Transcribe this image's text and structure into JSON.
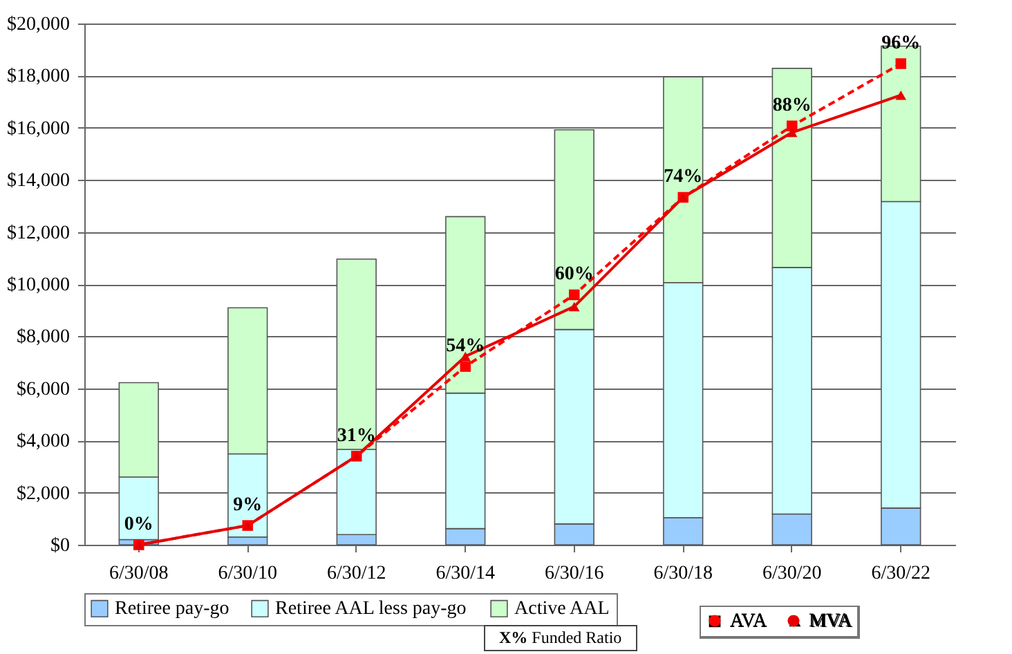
{
  "chart_data": {
    "type": "bar",
    "stacked": true,
    "categories": [
      "6/30/08",
      "6/30/10",
      "6/30/12",
      "6/30/14",
      "6/30/16",
      "6/30/18",
      "6/30/20",
      "6/30/22"
    ],
    "series": [
      {
        "name": "Retiree pay-go",
        "color": "#99ccff",
        "values": [
          200,
          300,
          390,
          620,
          800,
          1040,
          1180,
          1410
        ]
      },
      {
        "name": "Retiree AAL less pay-go",
        "color": "#ccffff",
        "values": [
          2400,
          3190,
          3270,
          5200,
          7460,
          9020,
          9460,
          11760
        ]
      },
      {
        "name": "Active AAL",
        "color": "#ccffcc",
        "values": [
          3620,
          5600,
          7300,
          6770,
          7660,
          7890,
          7640,
          5960
        ]
      },
      {
        "name": "AVA",
        "type": "line",
        "color": "#ff0000",
        "marker": "square",
        "line_style": "dashed",
        "values": [
          0,
          740,
          3400,
          6840,
          9590,
          13330,
          16070,
          18460
        ]
      },
      {
        "name": "MVA",
        "type": "line",
        "color": "#e60000",
        "marker": "triangle",
        "line_style": "solid",
        "values": [
          0,
          740,
          3400,
          7230,
          9140,
          13330,
          15820,
          17250
        ]
      }
    ],
    "ylim": [
      0,
      20000
    ],
    "yticks": [
      {
        "value": 0,
        "label": "$0"
      },
      {
        "value": 2000,
        "label": "$2,000"
      },
      {
        "value": 4000,
        "label": "$4,000"
      },
      {
        "value": 6000,
        "label": "$6,000"
      },
      {
        "value": 8000,
        "label": "$8,000"
      },
      {
        "value": 10000,
        "label": "$10,000"
      },
      {
        "value": 12000,
        "label": "$12,000"
      },
      {
        "value": 14000,
        "label": "$14,000"
      },
      {
        "value": 16000,
        "label": "$16,000"
      },
      {
        "value": 18000,
        "label": "$18,000"
      },
      {
        "value": 20000,
        "label": "$20,000"
      }
    ],
    "grid": "y",
    "legend": "bottom",
    "annotations": [
      {
        "text": "0%",
        "x": "6/30/08",
        "y": 0
      },
      {
        "text": "9%",
        "x": "6/30/10",
        "y": 740
      },
      {
        "text": "31%",
        "x": "6/30/12",
        "y": 3400
      },
      {
        "text": "54%",
        "x": "6/30/14",
        "y": 6840
      },
      {
        "text": "60%",
        "x": "6/30/16",
        "y": 9590
      },
      {
        "text": "74%",
        "x": "6/30/18",
        "y": 13330
      },
      {
        "text": "88%",
        "x": "6/30/20",
        "y": 16070
      },
      {
        "text": "96%",
        "x": "6/30/22",
        "y": 18460
      },
      "X% Funded Ratio"
    ]
  }
}
